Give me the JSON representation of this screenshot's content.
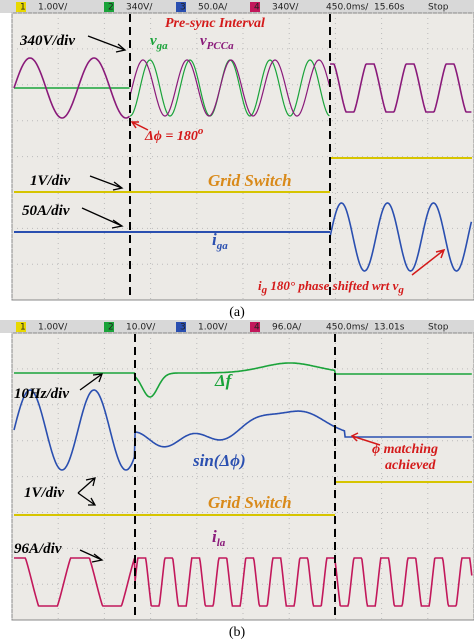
{
  "panels": [
    {
      "toolbar": [
        "1",
        "1.00V/",
        "2",
        "340V/",
        "3",
        "50.0A/",
        "4",
        "340V/",
        "450.0ms/",
        "15.60s",
        "Stop"
      ],
      "scale_labels": [
        "340V/div",
        "1V/div",
        "50A/div"
      ],
      "v_ga": {
        "main": "v",
        "sub": "ga"
      },
      "v_pcca": {
        "main": "v",
        "sub": "PCCa"
      },
      "interval": "Pre-sync Interval",
      "phase": {
        "text": "Δϕ = 180",
        "sup": "o"
      },
      "switch": "Grid Switch",
      "i_ga": {
        "main": "i",
        "sub": "ga"
      },
      "note": {
        "a": "i",
        "a_sub": "g",
        "b": " 180° phase shifted wrt v",
        "b_sub": "g"
      },
      "caption": "(a)"
    },
    {
      "toolbar": [
        "1",
        "1.00V/",
        "2",
        "10.0V/",
        "3",
        "1.00V/",
        "4",
        "96.0A/",
        "450.0ms/",
        "13.01s",
        "Stop"
      ],
      "scale_labels": [
        "10Hz/div",
        "1V/div",
        "96A/div"
      ],
      "delta_f": "Δf",
      "sin": "sin(Δϕ)",
      "note": [
        "ϕ matching",
        "achieved"
      ],
      "switch": "Grid Switch",
      "i_la": {
        "main": "i",
        "sub": "la"
      },
      "caption": "(b)"
    }
  ]
}
